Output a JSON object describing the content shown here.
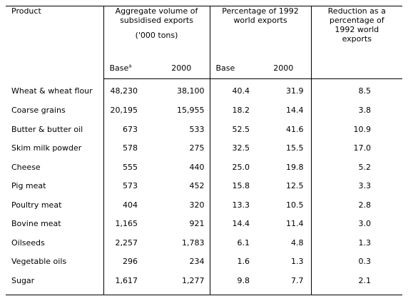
{
  "headers": {
    "product": "Product",
    "volume": "Aggregate volume of subsidised exports",
    "volume_units": "('000 tons)",
    "pct": "Percentage of 1992 world exports",
    "reduction": "Reduction as a percentage of 1992 world exports",
    "base": "Base",
    "base_note": "a",
    "y2000": "2000"
  },
  "rows": [
    {
      "product": "Wheat & wheat flour",
      "vol_base": "48,230",
      "vol_2000": "38,100",
      "pct_base": "40.4",
      "pct_2000": "31.9",
      "reduction": "8.5"
    },
    {
      "product": "Coarse grains",
      "vol_base": "20,195",
      "vol_2000": "15,955",
      "pct_base": "18.2",
      "pct_2000": "14.4",
      "reduction": "3.8"
    },
    {
      "product": "Butter & butter oil",
      "vol_base": "673",
      "vol_2000": "533",
      "pct_base": "52.5",
      "pct_2000": "41.6",
      "reduction": "10.9"
    },
    {
      "product": "Skim milk powder",
      "vol_base": "578",
      "vol_2000": "275",
      "pct_base": "32.5",
      "pct_2000": "15.5",
      "reduction": "17.0"
    },
    {
      "product": "Cheese",
      "vol_base": "555",
      "vol_2000": "440",
      "pct_base": "25.0",
      "pct_2000": "19.8",
      "reduction": "5.2"
    },
    {
      "product": "Pig meat",
      "vol_base": "573",
      "vol_2000": "452",
      "pct_base": "15.8",
      "pct_2000": "12.5",
      "reduction": "3.3"
    },
    {
      "product": "Poultry meat",
      "vol_base": "404",
      "vol_2000": "320",
      "pct_base": "13.3",
      "pct_2000": "10.5",
      "reduction": "2.8"
    },
    {
      "product": "Bovine meat",
      "vol_base": "1,165",
      "vol_2000": "921",
      "pct_base": "14.4",
      "pct_2000": "11.4",
      "reduction": "3.0"
    },
    {
      "product": "Oilseeds",
      "vol_base": "2,257",
      "vol_2000": "1,783",
      "pct_base": "6.1",
      "pct_2000": "4.8",
      "reduction": "1.3"
    },
    {
      "product": "Vegetable oils",
      "vol_base": "296",
      "vol_2000": "234",
      "pct_base": "1.6",
      "pct_2000": "1.3",
      "reduction": "0.3"
    },
    {
      "product": "Sugar",
      "vol_base": "1,617",
      "vol_2000": "1,277",
      "pct_base": "9.8",
      "pct_2000": "7.7",
      "reduction": "2.1"
    }
  ]
}
